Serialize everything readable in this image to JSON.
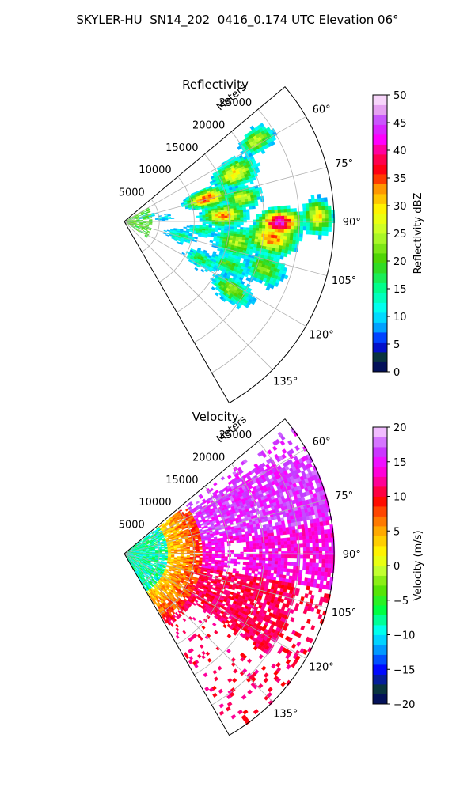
{
  "figure_title": "SKYLER-HU  SN14_202  0416_0.174 UTC Elevation 06°",
  "chart_data": [
    {
      "type": "heatmap",
      "projection": "polar-sector",
      "title": "Reflectivity",
      "range_label": "Meters",
      "range_ticks": [
        5000,
        10000,
        15000,
        20000,
        25000
      ],
      "range_tick_labels": [
        "5000",
        "10000",
        "15000",
        "20000",
        "25000"
      ],
      "range_max": 30000,
      "azimuth_range": [
        50,
        150
      ],
      "azimuth_ticks": [
        60,
        75,
        90,
        105,
        120,
        135
      ],
      "azimuth_tick_labels": [
        "60°",
        "75°",
        "90°",
        "105°",
        "120°",
        "135°"
      ],
      "colorbar": {
        "label": "Reflectivity dBZ",
        "range": [
          0,
          50
        ],
        "ticks": [
          0,
          5,
          10,
          15,
          20,
          25,
          30,
          35,
          40,
          45,
          50
        ],
        "tick_labels": [
          "0",
          "5",
          "10",
          "15",
          "20",
          "25",
          "30",
          "35",
          "40",
          "45",
          "50"
        ],
        "colormap": "NWSRef"
      },
      "echo_regions": [
        {
          "az": 58,
          "r": 22000,
          "sa": 4,
          "sr": 2500,
          "peak": 27
        },
        {
          "az": 66,
          "r": 17000,
          "sa": 6,
          "sr": 3000,
          "peak": 30
        },
        {
          "az": 74,
          "r": 12000,
          "sa": 6,
          "sr": 3000,
          "peak": 36
        },
        {
          "az": 78,
          "r": 17000,
          "sa": 5,
          "sr": 2500,
          "peak": 27
        },
        {
          "az": 86,
          "r": 14000,
          "sa": 6,
          "sr": 3000,
          "peak": 33
        },
        {
          "az": 90,
          "r": 22000,
          "sa": 5,
          "sr": 3000,
          "peak": 43
        },
        {
          "az": 88,
          "r": 27500,
          "sa": 5,
          "sr": 2000,
          "peak": 30
        },
        {
          "az": 96,
          "r": 21000,
          "sa": 6,
          "sr": 3500,
          "peak": 34
        },
        {
          "az": 100,
          "r": 16000,
          "sa": 7,
          "sr": 3000,
          "peak": 25
        },
        {
          "az": 108,
          "r": 21000,
          "sa": 6,
          "sr": 3000,
          "peak": 22
        },
        {
          "az": 112,
          "r": 16000,
          "sa": 5,
          "sr": 3000,
          "peak": 20
        },
        {
          "az": 104,
          "r": 8000,
          "sa": 7,
          "sr": 2500,
          "peak": 15
        },
        {
          "az": 116,
          "r": 12000,
          "sa": 6,
          "sr": 2500,
          "peak": 18
        },
        {
          "az": 122,
          "r": 18000,
          "sa": 5,
          "sr": 3000,
          "peak": 24
        },
        {
          "az": 84,
          "r": 5500,
          "sa": 6,
          "sr": 1500,
          "peak": 12
        },
        {
          "az": 76,
          "r": 3000,
          "sa": 4,
          "sr": 1500,
          "peak": 17
        },
        {
          "az": 96,
          "r": 11000,
          "sa": 5,
          "sr": 2500,
          "peak": 17
        }
      ]
    },
    {
      "type": "heatmap",
      "projection": "polar-sector",
      "title": "Velocity",
      "range_label": "Meters",
      "range_ticks": [
        5000,
        10000,
        15000,
        20000,
        25000
      ],
      "range_tick_labels": [
        "5000",
        "10000",
        "15000",
        "20000",
        "25000"
      ],
      "range_max": 30000,
      "azimuth_range": [
        50,
        150
      ],
      "azimuth_ticks": [
        60,
        75,
        90,
        105,
        120,
        135
      ],
      "azimuth_tick_labels": [
        "60°",
        "75°",
        "90°",
        "105°",
        "120°",
        "135°"
      ],
      "colorbar": {
        "label": "Velocity (m/s)",
        "range": [
          -20,
          20
        ],
        "ticks": [
          -20,
          -15,
          -10,
          -5,
          0,
          5,
          10,
          15,
          20
        ],
        "tick_labels": [
          "−20",
          "−15",
          "−10",
          "−5",
          "0",
          "5",
          "10",
          "15",
          "20"
        ],
        "colormap": "NWSVel"
      },
      "velocity_pattern": {
        "near_range": -8,
        "mid_range": 3,
        "far_range_north": 16,
        "far_range_east": 14,
        "far_range_south": 11
      }
    }
  ]
}
